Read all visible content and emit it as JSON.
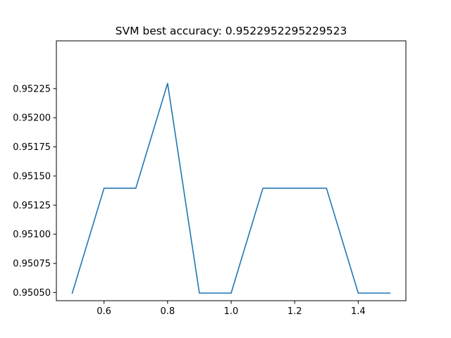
{
  "chart_data": {
    "type": "line",
    "title": "SVM best accuracy: 0.9522952295229523",
    "xlabel": "",
    "ylabel": "",
    "xlim": [
      0.45,
      1.55
    ],
    "ylim": [
      0.95043,
      0.95266
    ],
    "xticks": [
      0.6,
      0.8,
      1.0,
      1.2,
      1.4
    ],
    "xtick_labels": [
      "0.6",
      "0.8",
      "1.0",
      "1.2",
      "1.4"
    ],
    "yticks": [
      0.9505,
      0.95075,
      0.951,
      0.95125,
      0.9515,
      0.95175,
      0.952,
      0.95225
    ],
    "ytick_labels": [
      "0.95050",
      "0.95075",
      "0.95100",
      "0.95125",
      "0.95150",
      "0.95175",
      "0.95200",
      "0.95225"
    ],
    "grid": false,
    "series": [
      {
        "color": "#1f77b4",
        "x": [
          0.5,
          0.6,
          0.7,
          0.8,
          0.9,
          1.0,
          1.1,
          1.2,
          1.3,
          1.4,
          1.5
        ],
        "y": [
          0.9504950495,
          0.9513951395,
          0.9513951395,
          0.9522952295,
          0.9504950495,
          0.9504950495,
          0.9513951395,
          0.9513951395,
          0.9513951395,
          0.9504950495,
          0.9504950495
        ]
      }
    ]
  }
}
